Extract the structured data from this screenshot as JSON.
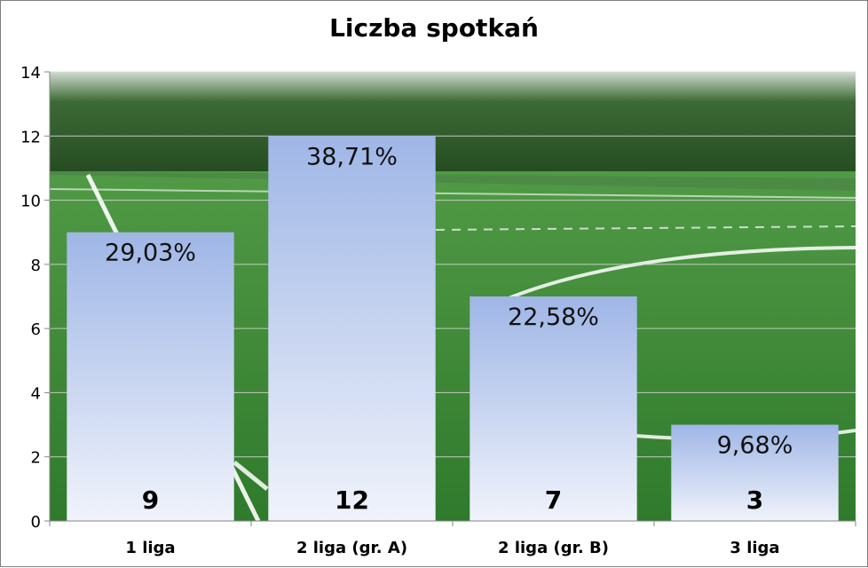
{
  "chart_data": {
    "type": "bar",
    "title": "Liczba spotkań",
    "categories": [
      "1 liga",
      "2 liga (gr. A)",
      "2 liga (gr. B)",
      "3 liga"
    ],
    "values": [
      9,
      12,
      7,
      3
    ],
    "percent_labels": [
      "29,03%",
      "38,71%",
      "22,58%",
      "9,68%"
    ],
    "ylim": [
      0,
      14
    ],
    "yticks": [
      0,
      2,
      4,
      6,
      8,
      10,
      12,
      14
    ],
    "grid": true,
    "legend": "none",
    "xlabel": "",
    "ylabel": "",
    "colors": {
      "bar_top": "#9fb6e6",
      "bar_bottom": "#f0f3fb",
      "grass": "#3f8f3a",
      "sky_trees": "#2f5a2a"
    }
  }
}
